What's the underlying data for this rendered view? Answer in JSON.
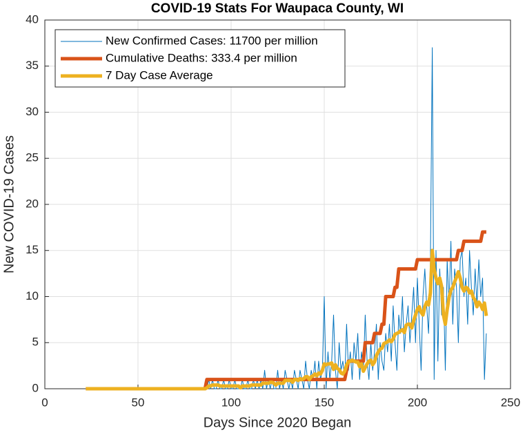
{
  "chart_data": {
    "type": "line",
    "title": "COVID-19 Stats For Waupaca County, WI",
    "x_label": "Days Since 2020 Began",
    "y_label": "New COVID-19 Cases",
    "xlim": [
      0,
      250
    ],
    "xticks": [
      0,
      50,
      100,
      150,
      200,
      250
    ],
    "ylim": [
      0,
      40
    ],
    "yticks": [
      0,
      5,
      10,
      15,
      20,
      25,
      30,
      35,
      40
    ],
    "grid": true,
    "legend": "upper left",
    "x": [
      22,
      23,
      24,
      25,
      26,
      27,
      28,
      29,
      30,
      31,
      32,
      33,
      34,
      35,
      36,
      37,
      38,
      39,
      40,
      41,
      42,
      43,
      44,
      45,
      46,
      47,
      48,
      49,
      50,
      51,
      52,
      53,
      54,
      55,
      56,
      57,
      58,
      59,
      60,
      61,
      62,
      63,
      64,
      65,
      66,
      67,
      68,
      69,
      70,
      71,
      72,
      73,
      74,
      75,
      76,
      77,
      78,
      79,
      80,
      81,
      82,
      83,
      84,
      85,
      86,
      87,
      88,
      89,
      90,
      91,
      92,
      93,
      94,
      95,
      96,
      97,
      98,
      99,
      100,
      101,
      102,
      103,
      104,
      105,
      106,
      107,
      108,
      109,
      110,
      111,
      112,
      113,
      114,
      115,
      116,
      117,
      118,
      119,
      120,
      121,
      122,
      123,
      124,
      125,
      126,
      127,
      128,
      129,
      130,
      131,
      132,
      133,
      134,
      135,
      136,
      137,
      138,
      139,
      140,
      141,
      142,
      143,
      144,
      145,
      146,
      147,
      148,
      149,
      150,
      151,
      152,
      153,
      154,
      155,
      156,
      157,
      158,
      159,
      160,
      161,
      162,
      163,
      164,
      165,
      166,
      167,
      168,
      169,
      170,
      171,
      172,
      173,
      174,
      175,
      176,
      177,
      178,
      179,
      180,
      181,
      182,
      183,
      184,
      185,
      186,
      187,
      188,
      189,
      190,
      191,
      192,
      193,
      194,
      195,
      196,
      197,
      198,
      199,
      200,
      201,
      202,
      203,
      204,
      205,
      206,
      207,
      208,
      209,
      210,
      211,
      212,
      213,
      214,
      215,
      216,
      217,
      218,
      219,
      220,
      221,
      222,
      223,
      224,
      225,
      226,
      227,
      228,
      229,
      230,
      231,
      232,
      233,
      234,
      235,
      236,
      237
    ],
    "series": [
      {
        "name": "New Confirmed Cases: 11700 per million",
        "color": "#0072BD",
        "width": 1,
        "values": [
          0,
          0,
          0,
          0,
          0,
          0,
          0,
          0,
          0,
          0,
          0,
          0,
          0,
          0,
          0,
          0,
          0,
          0,
          0,
          0,
          0,
          0,
          0,
          0,
          0,
          0,
          0,
          0,
          0,
          0,
          0,
          0,
          0,
          0,
          0,
          0,
          0,
          0,
          0,
          0,
          0,
          0,
          0,
          0,
          0,
          0,
          0,
          0,
          0,
          0,
          0,
          0,
          0,
          0,
          0,
          0,
          0,
          0,
          0,
          0,
          0,
          0,
          0,
          0,
          0,
          0,
          1,
          0,
          1,
          0,
          0,
          1,
          0,
          0,
          1,
          0,
          0,
          1,
          0,
          0,
          1,
          0,
          0,
          0,
          1,
          0,
          0,
          1,
          0,
          0,
          1,
          0,
          1,
          0,
          1,
          0,
          2,
          0,
          1,
          0,
          1,
          0,
          0,
          2,
          0,
          1,
          0,
          2,
          1,
          0,
          1,
          0,
          2,
          1,
          0,
          2,
          1,
          0,
          3,
          1,
          0,
          2,
          1,
          3,
          0,
          3,
          1,
          2,
          10,
          0,
          4,
          1,
          3,
          8,
          2,
          0,
          5,
          2,
          3,
          1,
          7,
          2,
          4,
          1,
          5,
          3,
          6,
          1,
          4,
          2,
          8,
          3,
          1,
          5,
          2,
          4,
          7,
          1,
          5,
          3,
          2,
          6,
          4,
          7,
          3,
          9,
          5,
          2,
          8,
          6,
          10,
          4,
          7,
          9,
          5,
          8,
          11,
          5,
          12,
          7,
          2,
          10,
          13,
          9,
          6,
          14,
          37,
          1,
          15,
          3,
          13,
          8,
          11,
          2,
          14,
          9,
          16,
          7,
          13,
          11,
          5,
          14,
          15,
          10,
          12,
          7,
          15,
          11,
          8,
          13,
          9,
          14,
          10,
          12,
          1,
          6
        ]
      },
      {
        "name": "Cumulative Deaths: 333.4 per million",
        "color": "#D95319",
        "width": 5,
        "values": [
          0,
          0,
          0,
          0,
          0,
          0,
          0,
          0,
          0,
          0,
          0,
          0,
          0,
          0,
          0,
          0,
          0,
          0,
          0,
          0,
          0,
          0,
          0,
          0,
          0,
          0,
          0,
          0,
          0,
          0,
          0,
          0,
          0,
          0,
          0,
          0,
          0,
          0,
          0,
          0,
          0,
          0,
          0,
          0,
          0,
          0,
          0,
          0,
          0,
          0,
          0,
          0,
          0,
          0,
          0,
          0,
          0,
          0,
          0,
          0,
          0,
          0,
          0,
          0,
          0,
          1,
          1,
          1,
          1,
          1,
          1,
          1,
          1,
          1,
          1,
          1,
          1,
          1,
          1,
          1,
          1,
          1,
          1,
          1,
          1,
          1,
          1,
          1,
          1,
          1,
          1,
          1,
          1,
          1,
          1,
          1,
          1,
          1,
          1,
          1,
          1,
          1,
          1,
          1,
          1,
          1,
          1,
          1,
          1,
          1,
          1,
          1,
          1,
          1,
          1,
          1,
          1,
          1,
          1,
          1,
          1,
          1,
          1,
          1,
          1,
          1,
          1,
          1,
          1,
          1,
          1,
          1,
          1,
          1,
          1,
          1,
          1,
          1,
          1,
          1,
          2,
          3,
          3,
          3,
          3,
          3,
          3,
          3,
          3,
          3,
          5,
          5,
          5,
          5,
          5,
          6,
          6,
          6,
          6,
          7,
          7,
          10,
          10,
          10,
          10,
          10,
          11,
          11,
          13,
          13,
          13,
          13,
          13,
          13,
          13,
          13,
          13,
          13,
          14,
          14,
          14,
          14,
          14,
          14,
          14,
          14,
          14,
          14,
          14,
          14,
          14,
          14,
          14,
          14,
          14,
          14,
          14,
          14,
          14,
          14,
          15,
          15,
          15,
          16,
          16,
          16,
          16,
          16,
          16,
          16,
          16,
          16,
          16,
          17,
          17,
          17
        ]
      },
      {
        "name": "7 Day Case Average",
        "color": "#EDB120",
        "width": 5,
        "values": [
          0,
          0,
          0,
          0,
          0,
          0,
          0,
          0,
          0,
          0,
          0,
          0,
          0,
          0,
          0,
          0,
          0,
          0,
          0,
          0,
          0,
          0,
          0,
          0,
          0,
          0,
          0,
          0,
          0,
          0,
          0,
          0,
          0,
          0,
          0,
          0,
          0,
          0,
          0,
          0,
          0,
          0,
          0,
          0,
          0,
          0,
          0,
          0,
          0,
          0,
          0,
          0,
          0,
          0,
          0,
          0,
          0,
          0,
          0,
          0,
          0,
          0,
          0,
          0,
          0,
          0.1,
          0.3,
          0.3,
          0.4,
          0.4,
          0.4,
          0.4,
          0.3,
          0.3,
          0.3,
          0.3,
          0.3,
          0.3,
          0.3,
          0.3,
          0.3,
          0.3,
          0.3,
          0.1,
          0.3,
          0.3,
          0.3,
          0.3,
          0.3,
          0.4,
          0.4,
          0.4,
          0.4,
          0.4,
          0.4,
          0.6,
          0.6,
          0.6,
          0.6,
          0.7,
          0.7,
          0.6,
          0.4,
          0.6,
          0.6,
          0.6,
          0.6,
          0.9,
          0.9,
          0.9,
          0.9,
          0.7,
          1,
          1,
          0.9,
          1.1,
          1,
          1.1,
          1.3,
          1.3,
          1,
          1.3,
          1.4,
          1.6,
          1.4,
          1.7,
          1.6,
          2,
          2.7,
          2.6,
          2.7,
          2.7,
          2.8,
          2.1,
          2.6,
          2.2,
          2.1,
          1.7,
          1.6,
          1.9,
          2.6,
          2.9,
          3,
          3.1,
          3,
          2.9,
          2.9,
          2.4,
          2.7,
          1.9,
          2.3,
          2.7,
          3,
          3.1,
          2.6,
          2.9,
          3.6,
          4,
          4.3,
          4.4,
          4.9,
          5,
          5.1,
          5.3,
          5.1,
          5.4,
          5.9,
          6,
          6.1,
          6.3,
          6.4,
          6.1,
          6.9,
          7,
          7,
          6.6,
          7.4,
          8,
          8.6,
          8.9,
          8.3,
          8,
          8.9,
          9.4,
          9.1,
          10.4,
          15,
          13,
          12,
          11.4,
          12,
          11.1,
          8,
          7,
          8.6,
          9.9,
          10.7,
          11,
          11.6,
          12.1,
          12.7,
          12,
          11,
          10.6,
          11,
          10.9,
          10.4,
          10.6,
          9.9,
          9.6,
          8.9,
          9.4,
          9.1,
          8.6,
          9.3,
          7.9
        ]
      }
    ]
  }
}
